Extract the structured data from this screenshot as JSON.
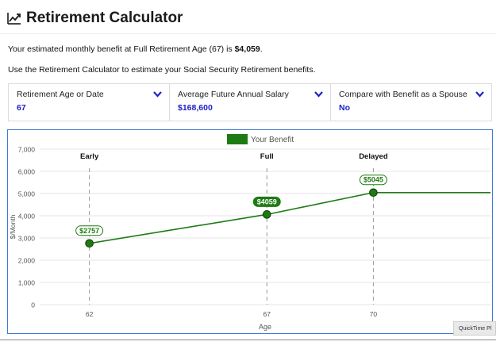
{
  "header": {
    "title": "Retirement Calculator",
    "icon": "trending-up-icon"
  },
  "summary": {
    "prefix": "Your estimated monthly benefit at Full Retirement Age (67) is ",
    "amount": "$4,059",
    "suffix": "."
  },
  "instructions": "Use the Retirement Calculator to estimate your Social Security Retirement benefits.",
  "selectors": [
    {
      "label": "Retirement Age or Date",
      "value": "67"
    },
    {
      "label": "Average Future Annual Salary",
      "value": "$168,600"
    },
    {
      "label": "Compare with Benefit as a Spouse",
      "value": "No"
    }
  ],
  "quicktime_badge": "QuickTime Pl",
  "colors": {
    "series": "#1e7b12",
    "value": "#1f22c8",
    "frame": "#3d7bd6"
  },
  "chart_data": {
    "type": "line",
    "x": [
      62,
      67,
      70
    ],
    "y": [
      2757,
      4059,
      5045
    ],
    "point_labels": [
      "$2757",
      "$4059",
      "$5045"
    ],
    "markers": [
      {
        "x": 62,
        "label": "Early"
      },
      {
        "x": 67,
        "label": "Full"
      },
      {
        "x": 70,
        "label": "Delayed"
      }
    ],
    "series": [
      {
        "name": "Your Benefit",
        "values": [
          2757,
          4059,
          5045
        ]
      }
    ],
    "xlabel": "Age",
    "ylabel": "$/Month",
    "x_ticks": [
      "62",
      "67",
      "70"
    ],
    "y_ticks": [
      "0",
      "1,000",
      "2,000",
      "3,000",
      "4,000",
      "5,000",
      "6,000",
      "7,000"
    ],
    "ylim": [
      0,
      7000
    ],
    "extends_flat_after_last": true,
    "grid": "horizontal",
    "legend": "top-center",
    "highlighted_point": 67
  }
}
